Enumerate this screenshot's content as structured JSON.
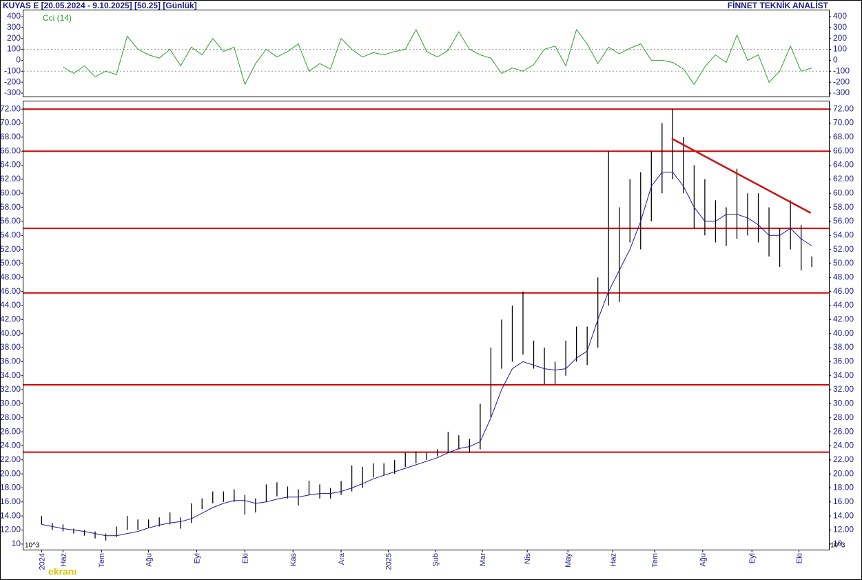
{
  "header": {
    "left": "KUYAS E  [20.05.2024 - 9.10.2025]  [50.25]  [Günlük]",
    "right": "FİNNET TEKNİK ANALİST",
    "watermark": "ekranı"
  },
  "chart_data": [
    {
      "type": "line",
      "title": "Cci (14)",
      "color": "#2ca02c",
      "x": [
        0,
        1,
        2,
        3,
        4,
        5,
        6,
        7,
        8,
        9,
        10,
        11,
        12,
        13,
        14,
        15,
        16,
        17,
        18,
        19,
        20,
        21,
        22,
        23,
        24,
        25,
        26,
        27,
        28,
        29,
        30,
        31,
        32,
        33,
        34,
        35,
        36,
        37,
        38,
        39,
        40,
        41,
        42,
        43,
        44,
        45,
        46,
        47,
        48,
        49,
        50,
        51,
        52,
        53,
        54,
        55,
        56,
        57,
        58,
        59,
        60,
        61,
        62,
        63,
        64,
        65,
        66,
        67,
        68,
        69,
        70,
        71,
        72
      ],
      "values": [
        null,
        null,
        -60,
        -120,
        -50,
        -150,
        -100,
        -130,
        220,
        100,
        50,
        20,
        100,
        -50,
        120,
        50,
        200,
        80,
        120,
        -220,
        -30,
        100,
        30,
        80,
        150,
        -100,
        -30,
        -80,
        200,
        100,
        30,
        70,
        50,
        80,
        100,
        280,
        80,
        30,
        90,
        260,
        100,
        50,
        20,
        -120,
        -70,
        -100,
        -40,
        100,
        130,
        -50,
        280,
        150,
        -30,
        120,
        60,
        110,
        150,
        0,
        0,
        -20,
        -80,
        -220,
        -60,
        50,
        -20,
        230,
        0,
        50,
        -200,
        -100,
        130,
        -100,
        -70
      ],
      "xlim": [
        -1.7,
        73.6
      ],
      "ylim": [
        -331,
        456
      ],
      "yticks": [
        -300,
        -200,
        -100,
        0,
        100,
        200,
        300,
        400
      ],
      "levels": [
        100,
        -100
      ]
    },
    {
      "type": "ohlc",
      "scale_note": "10^3",
      "x": [
        0,
        1,
        2,
        3,
        4,
        5,
        6,
        7,
        8,
        9,
        10,
        11,
        12,
        13,
        14,
        15,
        16,
        17,
        18,
        19,
        20,
        21,
        22,
        23,
        24,
        25,
        26,
        27,
        28,
        29,
        30,
        31,
        32,
        33,
        34,
        35,
        36,
        37,
        38,
        39,
        40,
        41,
        42,
        43,
        44,
        45,
        46,
        47,
        48,
        49,
        50,
        51,
        52,
        53,
        54,
        55,
        56,
        57,
        58,
        59,
        60,
        61,
        62,
        63,
        64,
        65,
        66,
        67,
        68,
        69,
        70,
        71,
        72
      ],
      "high": [
        14.0,
        13.0,
        12.8,
        12.2,
        12.0,
        11.8,
        11.5,
        12.5,
        14.0,
        13.5,
        13.5,
        13.8,
        14.5,
        13.8,
        15.8,
        16.5,
        17.5,
        17.5,
        17.8,
        17.0,
        16.5,
        18.5,
        18.8,
        18.2,
        17.8,
        19.0,
        18.5,
        18.0,
        19.0,
        21.2,
        21.0,
        21.5,
        21.5,
        22.0,
        23.0,
        23.2,
        23.0,
        23.5,
        26.0,
        25.5,
        25.0,
        30.0,
        38.0,
        42.0,
        44.0,
        46.0,
        39.0,
        38.0,
        36.0,
        39.0,
        41.0,
        41.0,
        48.0,
        66.0,
        58.0,
        62.0,
        63.0,
        66.0,
        70.0,
        72.0,
        68.0,
        64.0,
        62.0,
        59.0,
        58.0,
        63.5,
        60.0,
        60.0,
        58.0,
        55.0,
        59.0,
        55.5,
        51.0
      ],
      "low": [
        12.8,
        12.0,
        11.8,
        11.5,
        11.2,
        10.8,
        10.5,
        11.0,
        12.0,
        12.0,
        12.3,
        12.5,
        12.8,
        12.2,
        13.0,
        15.0,
        15.8,
        16.0,
        16.0,
        14.2,
        14.5,
        16.0,
        16.8,
        16.5,
        15.5,
        17.0,
        16.5,
        16.5,
        17.0,
        17.5,
        18.0,
        19.5,
        19.8,
        20.0,
        21.0,
        21.5,
        22.0,
        22.5,
        23.0,
        23.5,
        23.0,
        23.5,
        28.0,
        35.0,
        36.0,
        37.0,
        35.0,
        32.8,
        32.8,
        34.0,
        36.0,
        35.5,
        38.0,
        44.0,
        44.5,
        53.0,
        52.0,
        56.0,
        60.0,
        62.0,
        60.0,
        55.0,
        54.0,
        53.0,
        52.5,
        53.5,
        54.0,
        53.0,
        51.0,
        49.5,
        52.0,
        49.0,
        49.5
      ],
      "series": [
        {
          "name": "MA",
          "color": "#1a1aa0",
          "values": [
            12.8,
            12.5,
            12.2,
            12.0,
            11.8,
            11.5,
            11.2,
            11.2,
            11.5,
            11.8,
            12.3,
            12.7,
            13.0,
            13.2,
            13.6,
            14.4,
            15.2,
            15.8,
            16.2,
            16.2,
            15.8,
            16.0,
            16.4,
            16.7,
            16.7,
            17.0,
            17.2,
            17.2,
            17.5,
            18.0,
            18.6,
            19.3,
            19.8,
            20.3,
            20.8,
            21.3,
            21.8,
            22.3,
            23.0,
            23.6,
            23.9,
            24.6,
            28.0,
            32.0,
            35.0,
            36.0,
            35.5,
            35.0,
            34.8,
            35.0,
            36.5,
            37.5,
            42.0,
            46.0,
            49.0,
            52.0,
            56.0,
            61.0,
            63.0,
            63.0,
            61.0,
            58.0,
            56.0,
            56.0,
            57.0,
            57.0,
            56.5,
            55.5,
            54.0,
            54.0,
            55.0,
            53.5,
            52.5
          ]
        }
      ],
      "levels": [
        72,
        66,
        55,
        45.8,
        32.7,
        23.1
      ],
      "level_color": "#d40000",
      "trendline": {
        "x": [
          58.9,
          71.9
        ],
        "y": [
          67.8,
          57.2
        ],
        "color": "#cc1111"
      },
      "xlim": [
        -1.7,
        73.6
      ],
      "ylim": [
        9.2,
        73.1
      ],
      "yticks": [
        {
          "value": 10,
          "label": "10"
        },
        {
          "value": 12,
          "label": "12.00"
        },
        {
          "value": 14,
          "label": "14.00"
        },
        {
          "value": 16,
          "label": "16.00"
        },
        {
          "value": 18,
          "label": "18.00"
        },
        {
          "value": 20,
          "label": "20.00"
        },
        {
          "value": 22,
          "label": "22.00"
        },
        {
          "value": 24,
          "label": "24.00"
        },
        {
          "value": 26,
          "label": "26.00"
        },
        {
          "value": 28,
          "label": "28.00"
        },
        {
          "value": 30,
          "label": "30.00"
        },
        {
          "value": 32,
          "label": "32.00"
        },
        {
          "value": 34,
          "label": "34.00"
        },
        {
          "value": 36,
          "label": "36.00"
        },
        {
          "value": 38,
          "label": "38.00"
        },
        {
          "value": 40,
          "label": "40.00"
        },
        {
          "value": 42,
          "label": "42.00"
        },
        {
          "value": 44,
          "label": "44.00"
        },
        {
          "value": 46,
          "label": "46.00"
        },
        {
          "value": 48,
          "label": "48.00"
        },
        {
          "value": 50,
          "label": "50.00"
        },
        {
          "value": 52,
          "label": "52.00"
        },
        {
          "value": 54,
          "label": "54.00"
        },
        {
          "value": 56,
          "label": "56.00"
        },
        {
          "value": 58,
          "label": "58.00"
        },
        {
          "value": 60,
          "label": "60.00"
        },
        {
          "value": 62,
          "label": "62.00"
        },
        {
          "value": 64,
          "label": "64.00"
        },
        {
          "value": 66,
          "label": "66.00"
        },
        {
          "value": 68,
          "label": "68.00"
        },
        {
          "value": 70,
          "label": "70.00"
        },
        {
          "value": 72,
          "label": "72.00"
        }
      ],
      "xticks": [
        {
          "value": 0,
          "label": "2024"
        },
        {
          "value": 2,
          "label": "Haz"
        },
        {
          "value": 5.6,
          "label": "Tem"
        },
        {
          "value": 10,
          "label": "Ağu"
        },
        {
          "value": 14.5,
          "label": "Eyl"
        },
        {
          "value": 19,
          "label": "Eki"
        },
        {
          "value": 23.5,
          "label": "Kas"
        },
        {
          "value": 28,
          "label": "Ara"
        },
        {
          "value": 32.4,
          "label": "2025"
        },
        {
          "value": 36.8,
          "label": "Şub"
        },
        {
          "value": 41.2,
          "label": "Mar"
        },
        {
          "value": 45.4,
          "label": "Nis"
        },
        {
          "value": 49.2,
          "label": "May"
        },
        {
          "value": 53.4,
          "label": "Haz"
        },
        {
          "value": 57.3,
          "label": "Tem"
        },
        {
          "value": 61.8,
          "label": "Ağu"
        },
        {
          "value": 66.4,
          "label": "Eyl"
        },
        {
          "value": 70.8,
          "label": "Eki"
        }
      ]
    }
  ]
}
